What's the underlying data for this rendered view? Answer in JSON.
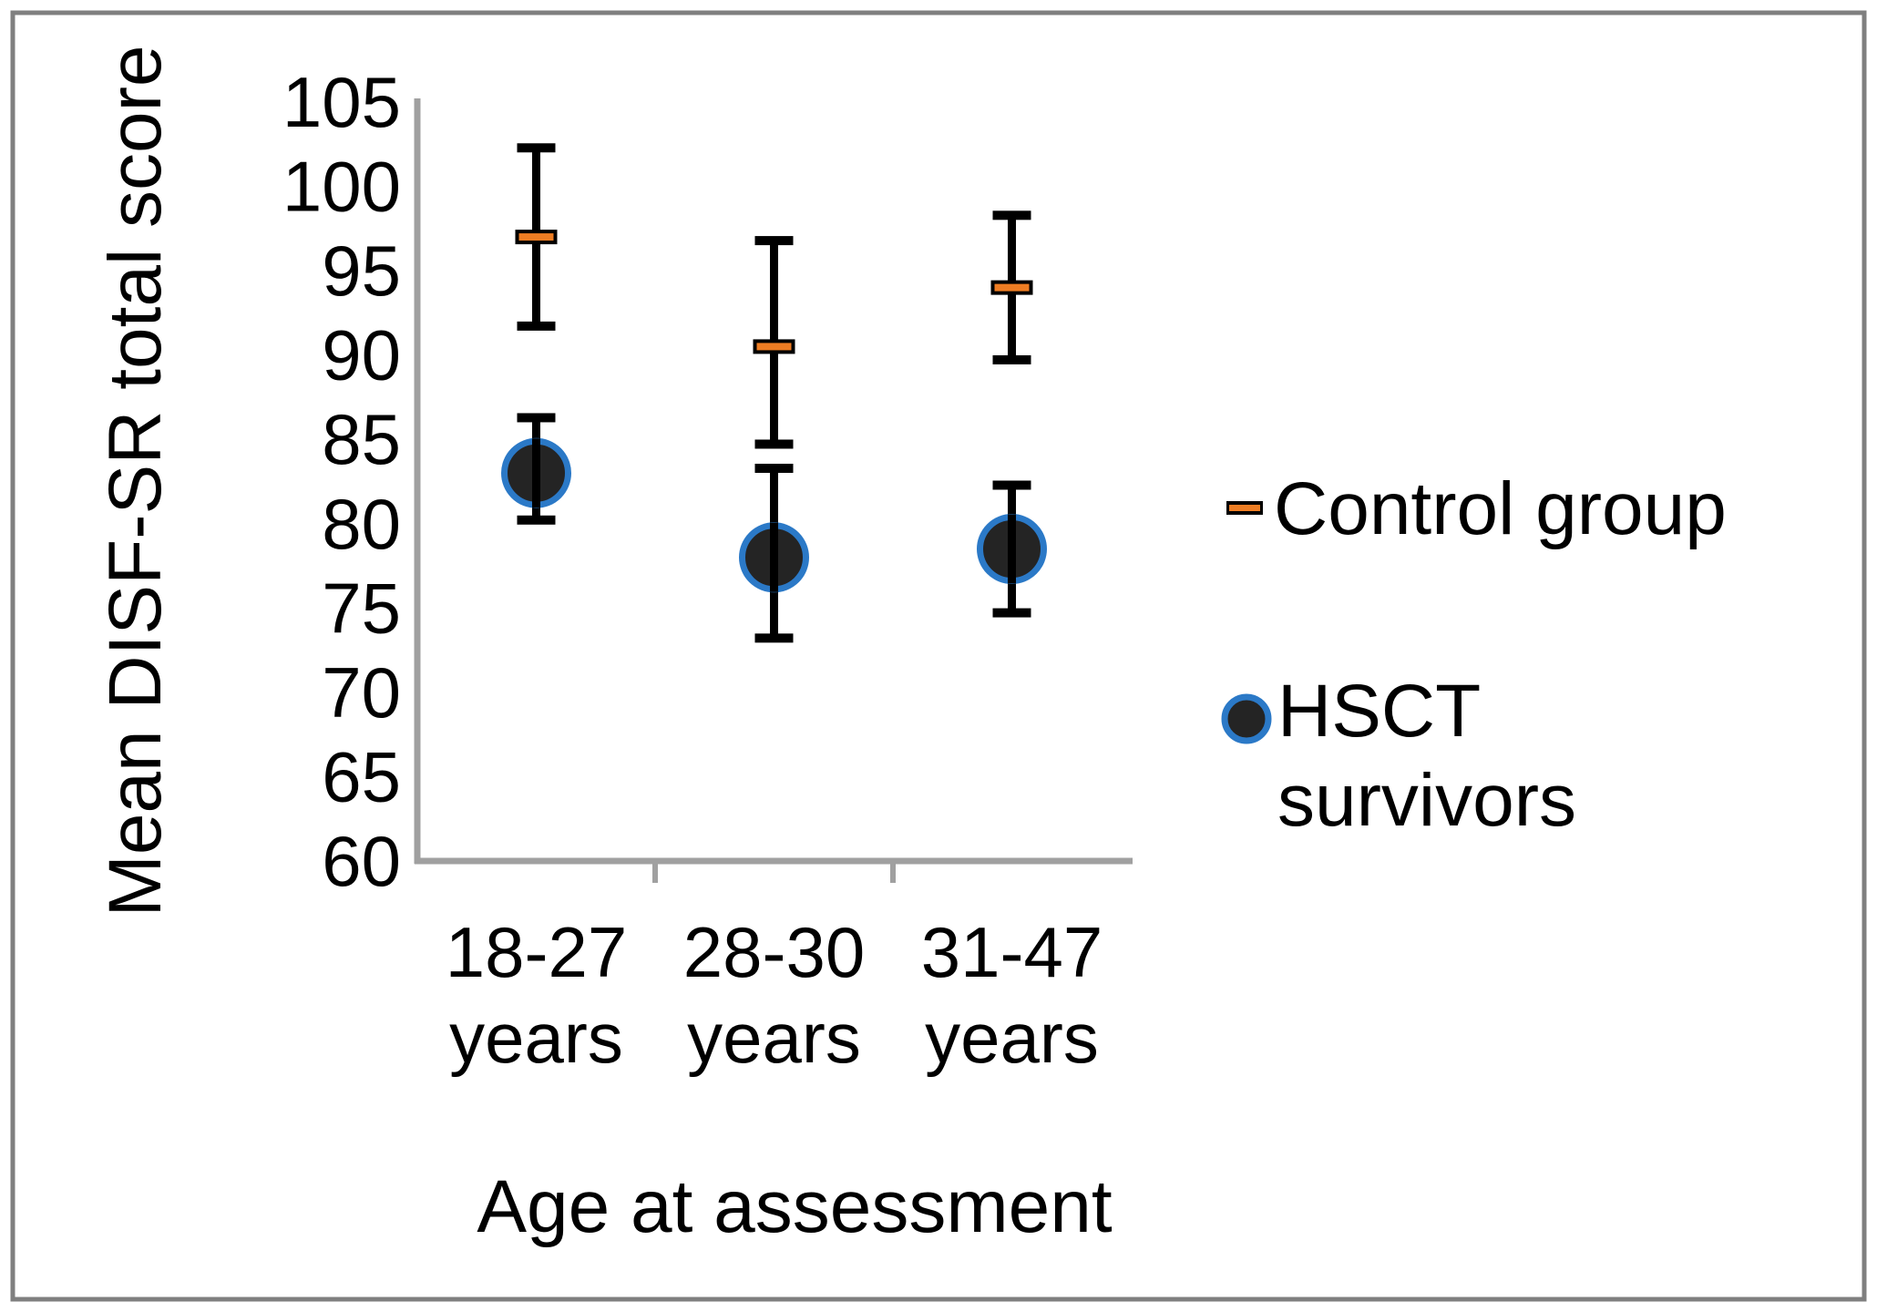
{
  "figure": {
    "background": "#FFFFFF",
    "border_color": "#7F7F7F",
    "axis_color": "#A0A0A0"
  },
  "chart_data": {
    "type": "scatter",
    "subtype": "means-with-error-bars",
    "title": "",
    "xlabel": "Age at assessment",
    "ylabel": "Mean DISF-SR total score",
    "categories": [
      "18-27 years",
      "28-30 years",
      "31-47 years"
    ],
    "category_label_lines": [
      [
        "18-27",
        "years"
      ],
      [
        "28-30",
        "years"
      ],
      [
        "31-47",
        "years"
      ]
    ],
    "ylim": [
      60,
      105
    ],
    "ytick_step": 5,
    "yticks": [
      105,
      100,
      95,
      90,
      85,
      80,
      75,
      70,
      65,
      60
    ],
    "grid": false,
    "legend_position": "right",
    "error_bar_color": "#000000",
    "series": [
      {
        "name": "Control group",
        "marker": "dash",
        "marker_color": "#EE7D23",
        "marker_border": "#000000",
        "means": [
          97.0,
          90.5,
          94.0
        ],
        "upper": [
          102.5,
          97.0,
          98.5
        ],
        "lower": [
          91.5,
          84.5,
          89.5
        ]
      },
      {
        "name": "HSCT survivors",
        "marker": "circle",
        "marker_fill": "#242424",
        "marker_ring": "#2B79C7",
        "means": [
          83.0,
          78.0,
          78.5
        ],
        "upper": [
          86.5,
          83.5,
          82.5
        ],
        "lower": [
          80.0,
          73.0,
          74.5
        ]
      }
    ]
  },
  "legend": {
    "items": [
      {
        "label": "Control group"
      },
      {
        "line1": "HSCT",
        "line2": "survivors"
      }
    ]
  }
}
